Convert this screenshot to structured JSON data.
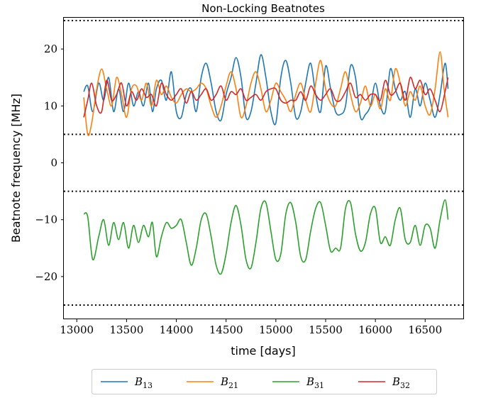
{
  "chart_data": {
    "type": "line",
    "title": "Non-Locking Beatnotes",
    "xlabel": "time [days]",
    "ylabel": "Beatnote frequency [MHz]",
    "xlim": [
      12870,
      16890
    ],
    "ylim": [
      -27.5,
      25.5
    ],
    "xticks": [
      13000,
      13500,
      14000,
      14500,
      15000,
      15500,
      16000,
      16500
    ],
    "xtick_labels": [
      "13000",
      "13500",
      "14000",
      "14500",
      "15000",
      "15500",
      "16000",
      "16500"
    ],
    "yticks": [
      -20,
      -10,
      0,
      10,
      20
    ],
    "ytick_labels": [
      "−20",
      "−10",
      "0",
      "10",
      "20"
    ],
    "grid": false,
    "legend_position": "bottom-center",
    "reference_lines": [
      -25,
      -5,
      5,
      25
    ],
    "reference_line_style": "dotted",
    "series": [
      {
        "name": "B13",
        "label_base": "B",
        "label_sub": "13",
        "color": "#1f77b4",
        "x": [
          13070,
          13110,
          13160,
          13220,
          13270,
          13320,
          13370,
          13420,
          13470,
          13520,
          13570,
          13620,
          13670,
          13720,
          13760,
          13800,
          13850,
          13900,
          13950,
          14000,
          14050,
          14100,
          14150,
          14200,
          14250,
          14300,
          14350,
          14400,
          14450,
          14500,
          14550,
          14600,
          14650,
          14700,
          14750,
          14800,
          14850,
          14900,
          14950,
          15000,
          15050,
          15100,
          15150,
          15200,
          15250,
          15300,
          15350,
          15400,
          15450,
          15500,
          15550,
          15600,
          15650,
          15700,
          15750,
          15800,
          15850,
          15900,
          15950,
          16000,
          16050,
          16100,
          16150,
          16200,
          16250,
          16300,
          16350,
          16400,
          16450,
          16500,
          16550,
          16600,
          16650,
          16700,
          16730
        ],
        "y": [
          12.5,
          13.5,
          9.0,
          14.0,
          11.0,
          15.0,
          9.0,
          13.0,
          9.0,
          14.0,
          10.0,
          12.5,
          10.0,
          14.0,
          9.0,
          13.0,
          14.5,
          11.0,
          16.0,
          9.0,
          8.0,
          12.0,
          13.0,
          9.0,
          15.0,
          17.5,
          14.0,
          9.0,
          7.5,
          12.0,
          15.0,
          18.5,
          15.0,
          8.0,
          9.0,
          14.0,
          19.0,
          15.0,
          9.0,
          7.0,
          15.0,
          18.0,
          14.0,
          8.0,
          9.0,
          14.0,
          17.5,
          12.0,
          9.0,
          17.0,
          13.0,
          9.0,
          8.5,
          10.0,
          17.0,
          15.0,
          8.0,
          8.5,
          10.0,
          14.0,
          10.0,
          9.0,
          16.5,
          13.0,
          11.0,
          12.5,
          8.0,
          13.0,
          10.0,
          14.0,
          11.0,
          8.0,
          12.0,
          17.5,
          13.0
        ]
      },
      {
        "name": "B21",
        "label_base": "B",
        "label_sub": "21",
        "color": "#ff7f0e",
        "x": [
          13070,
          13110,
          13150,
          13200,
          13250,
          13300,
          13350,
          13400,
          13450,
          13500,
          13550,
          13600,
          13650,
          13700,
          13750,
          13800,
          13850,
          13900,
          13950,
          14000,
          14050,
          14100,
          14150,
          14200,
          14250,
          14300,
          14350,
          14400,
          14450,
          14500,
          14550,
          14600,
          14650,
          14700,
          14750,
          14800,
          14850,
          14900,
          14950,
          15000,
          15050,
          15100,
          15150,
          15200,
          15250,
          15300,
          15350,
          15400,
          15450,
          15500,
          15550,
          15600,
          15650,
          15700,
          15750,
          15800,
          15850,
          15900,
          15950,
          16000,
          16050,
          16100,
          16150,
          16200,
          16250,
          16300,
          16350,
          16400,
          16450,
          16500,
          16550,
          16600,
          16650,
          16690,
          16730
        ],
        "y": [
          11.5,
          5.0,
          7.0,
          13.0,
          16.5,
          13.0,
          10.0,
          15.0,
          12.0,
          8.0,
          13.0,
          13.5,
          11.0,
          14.0,
          10.0,
          14.5,
          12.0,
          13.5,
          11.5,
          10.5,
          12.0,
          13.0,
          12.5,
          13.0,
          14.0,
          13.0,
          10.0,
          8.0,
          10.0,
          13.5,
          16.0,
          13.0,
          8.0,
          10.0,
          14.0,
          16.0,
          13.0,
          9.0,
          11.0,
          14.0,
          12.5,
          11.0,
          9.0,
          12.0,
          14.0,
          11.0,
          9.0,
          14.0,
          18.0,
          13.0,
          10.5,
          10.0,
          13.0,
          16.0,
          12.0,
          9.0,
          10.5,
          13.5,
          10.0,
          12.0,
          9.5,
          13.0,
          11.0,
          16.5,
          14.0,
          10.0,
          12.5,
          11.0,
          13.5,
          10.0,
          8.5,
          13.0,
          19.5,
          13.0,
          8.0
        ]
      },
      {
        "name": "B31",
        "label_base": "B",
        "label_sub": "31",
        "color": "#2ca02c",
        "x": [
          13070,
          13110,
          13160,
          13220,
          13270,
          13320,
          13370,
          13420,
          13470,
          13520,
          13570,
          13620,
          13670,
          13720,
          13760,
          13800,
          13850,
          13900,
          13950,
          14000,
          14050,
          14100,
          14150,
          14200,
          14250,
          14300,
          14350,
          14400,
          14450,
          14500,
          14550,
          14600,
          14650,
          14700,
          14750,
          14800,
          14850,
          14900,
          14950,
          15000,
          15050,
          15100,
          15150,
          15200,
          15250,
          15300,
          15350,
          15400,
          15450,
          15500,
          15550,
          15600,
          15650,
          15700,
          15750,
          15800,
          15850,
          15900,
          15950,
          16000,
          16050,
          16100,
          16150,
          16200,
          16250,
          16300,
          16350,
          16400,
          16450,
          16500,
          16550,
          16600,
          16650,
          16700,
          16730
        ],
        "y": [
          -9.0,
          -9.5,
          -17.0,
          -13.0,
          -10.0,
          -14.5,
          -10.5,
          -13.5,
          -10.5,
          -15.0,
          -11.0,
          -14.0,
          -11.0,
          -13.0,
          -10.5,
          -16.5,
          -13.0,
          -10.5,
          -11.5,
          -11.0,
          -10.0,
          -14.0,
          -18.0,
          -15.0,
          -10.0,
          -9.0,
          -13.0,
          -18.0,
          -19.5,
          -16.0,
          -10.5,
          -7.5,
          -11.0,
          -17.0,
          -18.5,
          -14.0,
          -8.0,
          -7.0,
          -12.0,
          -17.0,
          -16.0,
          -9.0,
          -7.0,
          -10.5,
          -16.5,
          -17.0,
          -12.0,
          -8.0,
          -7.0,
          -11.0,
          -15.5,
          -15.0,
          -15.0,
          -8.0,
          -7.0,
          -12.5,
          -15.5,
          -14.0,
          -9.0,
          -8.0,
          -14.0,
          -13.0,
          -14.5,
          -10.0,
          -8.0,
          -13.5,
          -14.0,
          -11.0,
          -14.5,
          -11.0,
          -11.5,
          -15.0,
          -10.0,
          -6.5,
          -10.0
        ]
      },
      {
        "name": "B32",
        "label_base": "B",
        "label_sub": "32",
        "color": "#d62728",
        "x": [
          13070,
          13110,
          13150,
          13200,
          13250,
          13300,
          13350,
          13400,
          13450,
          13500,
          13550,
          13600,
          13650,
          13700,
          13750,
          13800,
          13850,
          13900,
          13950,
          14000,
          14050,
          14100,
          14150,
          14200,
          14250,
          14300,
          14350,
          14400,
          14450,
          14500,
          14550,
          14600,
          14650,
          14700,
          14750,
          14800,
          14850,
          14900,
          14950,
          15000,
          15050,
          15100,
          15150,
          15200,
          15250,
          15300,
          15350,
          15400,
          15450,
          15500,
          15550,
          15600,
          15650,
          15700,
          15750,
          15800,
          15850,
          15900,
          15950,
          16000,
          16050,
          16100,
          16150,
          16200,
          16250,
          16300,
          16350,
          16400,
          16450,
          16500,
          16550,
          16600,
          16650,
          16700,
          16730
        ],
        "y": [
          8.0,
          11.0,
          14.0,
          10.0,
          9.0,
          14.5,
          11.0,
          12.0,
          14.0,
          10.0,
          12.5,
          11.0,
          13.0,
          11.5,
          12.0,
          10.0,
          14.0,
          12.0,
          11.0,
          12.0,
          13.0,
          10.5,
          12.5,
          11.0,
          12.0,
          13.0,
          11.0,
          12.0,
          13.5,
          11.0,
          12.5,
          12.0,
          13.0,
          11.0,
          11.5,
          12.0,
          11.0,
          12.5,
          13.0,
          13.0,
          11.0,
          10.5,
          11.0,
          11.0,
          12.5,
          11.0,
          13.5,
          12.0,
          11.0,
          12.0,
          13.0,
          11.0,
          11.0,
          12.5,
          14.0,
          11.5,
          12.0,
          11.0,
          12.0,
          12.0,
          11.0,
          14.5,
          12.0,
          12.5,
          14.0,
          11.0,
          15.0,
          13.0,
          14.5,
          12.0,
          13.0,
          11.0,
          9.0,
          12.5,
          15.0
        ]
      }
    ]
  }
}
